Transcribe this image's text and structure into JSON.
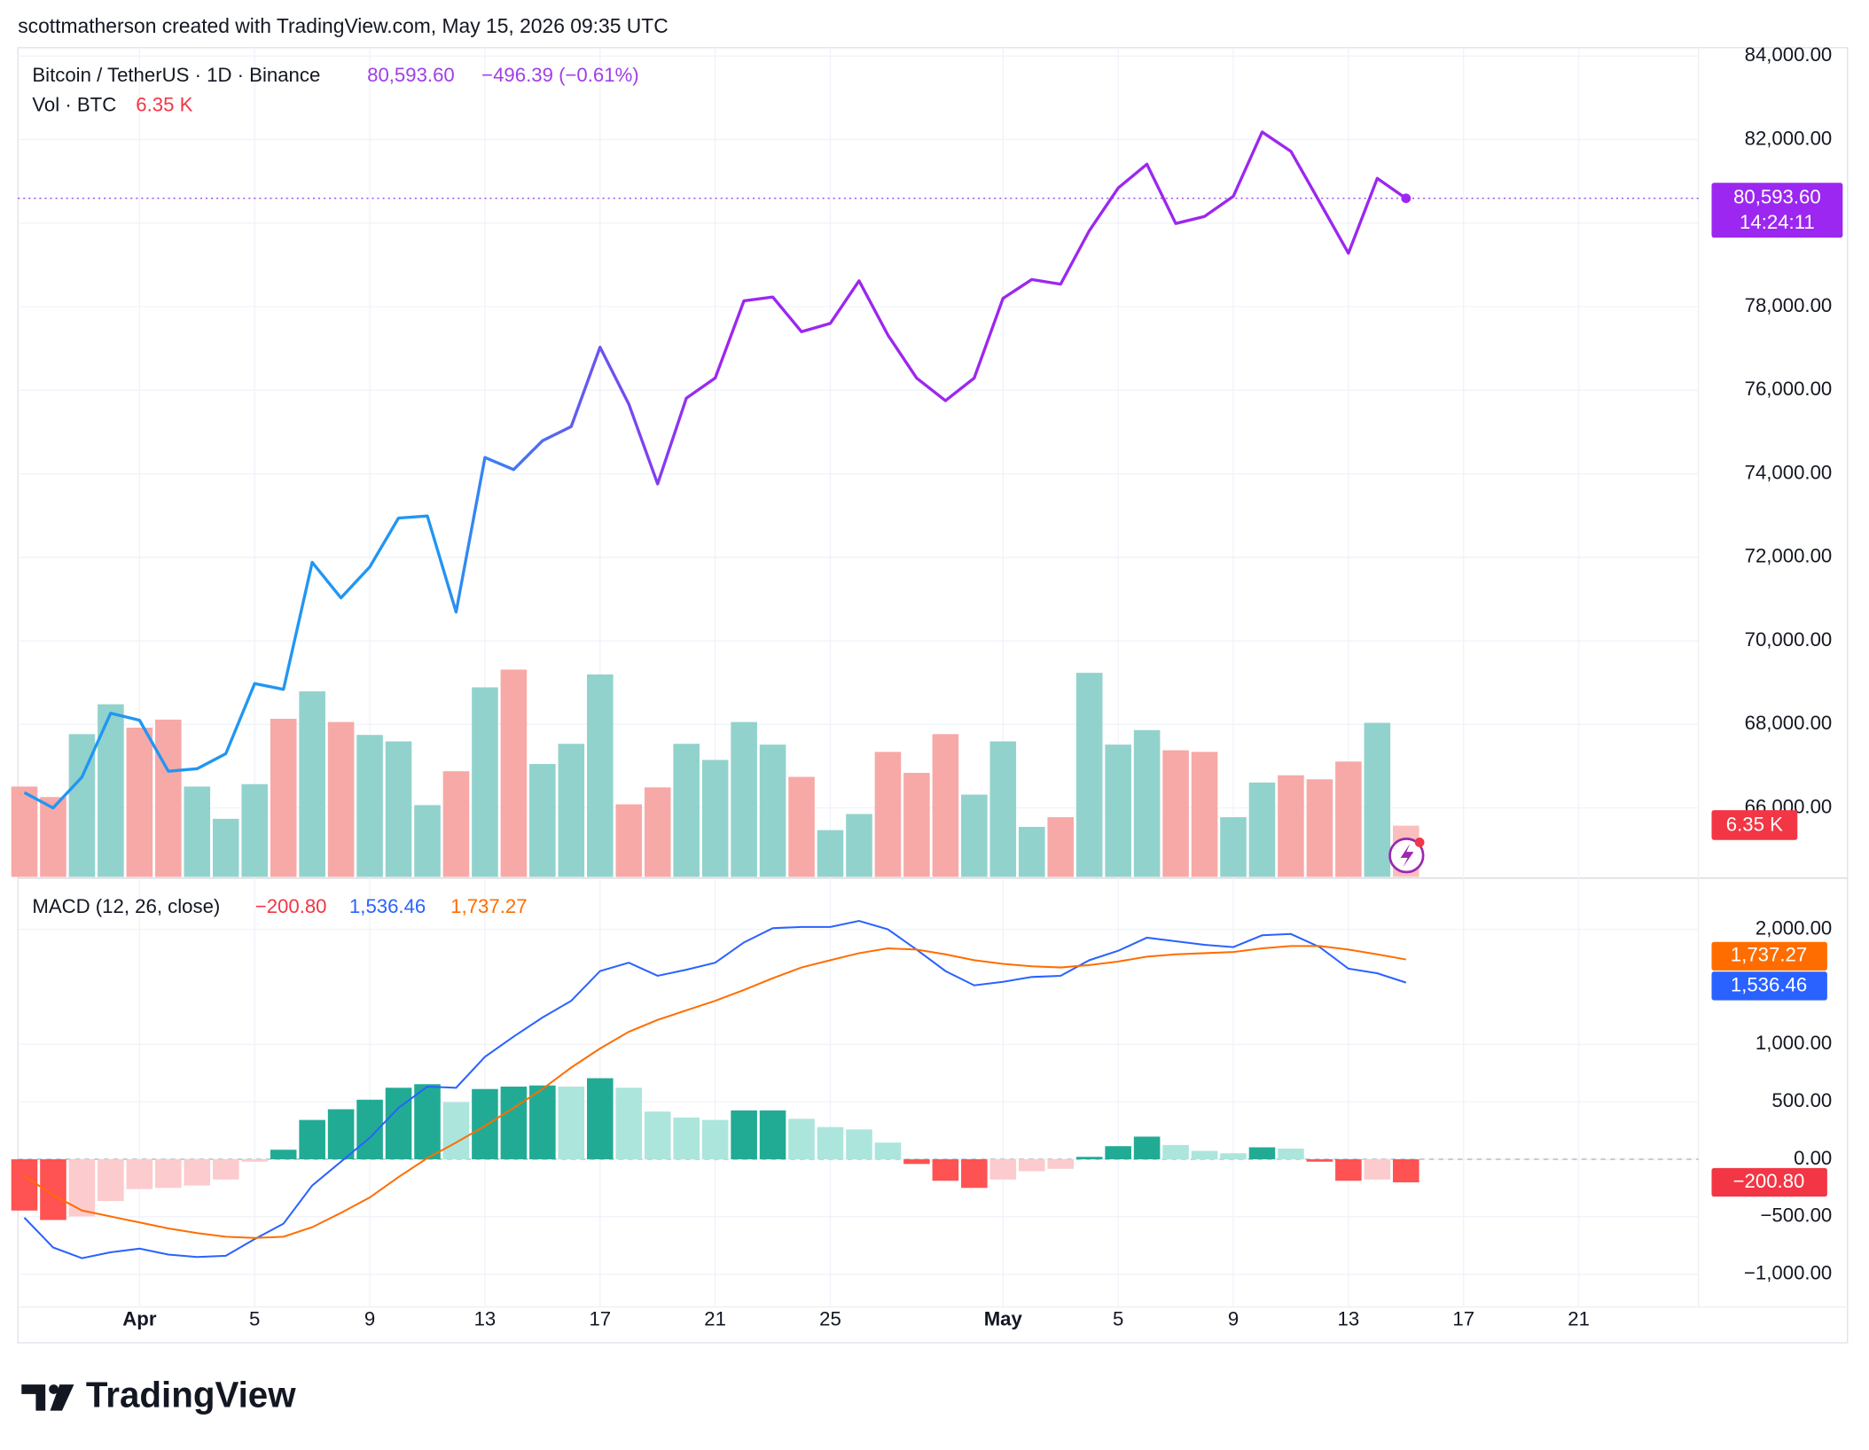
{
  "header": "scottmatherson created with TradingView.com, May 15, 2026 09:35 UTC",
  "footer": "TradingView",
  "chart_data": [
    {
      "type": "line",
      "title": "Bitcoin / TetherUS · 1D · Binance",
      "change": "−496.39 (−0.61%)",
      "countdown": "14:24:11",
      "ylim": [
        64350,
        84200
      ],
      "yticks": [
        {
          "value": 66000,
          "label": "66,000.00"
        },
        {
          "value": 68000,
          "label": "68,000.00"
        },
        {
          "value": 70000,
          "label": "70,000.00"
        },
        {
          "value": 72000,
          "label": "72,000.00"
        },
        {
          "value": 74000,
          "label": "74,000.00"
        },
        {
          "value": 76000,
          "label": "76,000.00"
        },
        {
          "value": 78000,
          "label": "78,000.00"
        },
        {
          "value": 80000,
          "label": "80,000.00"
        },
        {
          "value": 82000,
          "label": "82,000.00"
        },
        {
          "value": 84000,
          "label": "84,000.00"
        }
      ],
      "grid": true,
      "series": [
        {
          "name": "Bitcoin / TetherUS",
          "color": "#9c27f0",
          "color_start": "#2196f3",
          "values": [
            66370,
            66000,
            66740,
            68270,
            68100,
            66880,
            66940,
            67300,
            68980,
            68840,
            71880,
            71030,
            71770,
            72940,
            72990,
            70690,
            74390,
            74100,
            74790,
            75130,
            77030,
            75670,
            73760,
            75810,
            76290,
            78140,
            78230,
            77400,
            77600,
            78620,
            77320,
            76290,
            75750,
            76290,
            78200,
            78650,
            78540,
            79820,
            80840,
            81410,
            79990,
            80160,
            80640,
            82180,
            81720,
            80500,
            79280,
            81070,
            80593.6,
            null,
            null,
            null,
            null,
            null,
            null,
            null,
            null,
            null,
            null
          ],
          "value_labels": [
            null,
            null,
            null,
            null,
            null,
            null,
            null,
            null,
            null,
            null,
            null,
            null,
            null,
            null,
            null,
            null,
            null,
            null,
            null,
            null,
            null,
            null,
            null,
            null,
            null,
            null,
            null,
            null,
            null,
            null,
            null,
            null,
            null,
            null,
            null,
            null,
            null,
            null,
            null,
            null,
            null,
            null,
            null,
            null,
            null,
            null,
            null,
            null,
            "80,593.60",
            null,
            null,
            null,
            null,
            null,
            null,
            null,
            null,
            null,
            null
          ]
        }
      ],
      "volume": {
        "name": "Vol · BTC",
        "values": [
          11200,
          9900,
          17700,
          21400,
          18500,
          19500,
          11200,
          7200,
          11500,
          19600,
          23000,
          19200,
          17600,
          16800,
          8900,
          13100,
          23500,
          25700,
          14000,
          16500,
          25100,
          9000,
          11100,
          16500,
          14500,
          19200,
          16400,
          12400,
          5800,
          7800,
          15500,
          12900,
          17700,
          10200,
          16800,
          6200,
          7400,
          25300,
          16400,
          18200,
          15700,
          15500,
          7400,
          11700,
          12600,
          12100,
          14300,
          19100,
          6350,
          null,
          null,
          null,
          null,
          null,
          null,
          null,
          null,
          null,
          null
        ],
        "value_labels": [
          null,
          null,
          null,
          null,
          null,
          null,
          null,
          null,
          null,
          null,
          null,
          null,
          null,
          null,
          null,
          null,
          null,
          null,
          null,
          null,
          null,
          null,
          null,
          null,
          null,
          null,
          null,
          null,
          null,
          null,
          null,
          null,
          null,
          null,
          null,
          null,
          null,
          null,
          null,
          null,
          null,
          null,
          null,
          null,
          null,
          null,
          null,
          null,
          "6.35 K",
          null,
          null,
          null,
          null,
          null,
          null,
          null,
          null,
          null,
          null
        ],
        "colors": [
          "#f7a9a7",
          "#f7a9a7",
          "#92d2cc",
          "#92d2cc",
          "#f7a9a7",
          "#f7a9a7",
          "#92d2cc",
          "#92d2cc",
          "#92d2cc",
          "#f7a9a7",
          "#92d2cc",
          "#f7a9a7",
          "#92d2cc",
          "#92d2cc",
          "#92d2cc",
          "#f7a9a7",
          "#92d2cc",
          "#f7a9a7",
          "#92d2cc",
          "#92d2cc",
          "#92d2cc",
          "#f7a9a7",
          "#f7a9a7",
          "#92d2cc",
          "#92d2cc",
          "#92d2cc",
          "#92d2cc",
          "#f7a9a7",
          "#92d2cc",
          "#92d2cc",
          "#f7a9a7",
          "#f7a9a7",
          "#f7a9a7",
          "#92d2cc",
          "#92d2cc",
          "#92d2cc",
          "#f7a9a7",
          "#92d2cc",
          "#92d2cc",
          "#92d2cc",
          "#f7a9a7",
          "#f7a9a7",
          "#92d2cc",
          "#92d2cc",
          "#f7a9a7",
          "#f7a9a7",
          "#f7a9a7",
          "#92d2cc",
          "#f7a9a7",
          null,
          null,
          null,
          null,
          null,
          null,
          null,
          null,
          null,
          null
        ],
        "label_color": "#f23645"
      }
    },
    {
      "type": "macd",
      "title": "MACD (12, 26, close)",
      "categories": [
        null,
        null,
        null,
        null,
        "Apr",
        null,
        null,
        null,
        "5",
        null,
        null,
        null,
        "9",
        null,
        null,
        null,
        "13",
        null,
        null,
        null,
        "17",
        null,
        null,
        null,
        "21",
        null,
        null,
        null,
        "25",
        null,
        null,
        null,
        null,
        null,
        "May",
        null,
        null,
        null,
        "5",
        null,
        null,
        null,
        "9",
        null,
        null,
        null,
        "13",
        null,
        null,
        null,
        "17",
        null,
        null,
        null,
        "21",
        null,
        null,
        null,
        null
      ],
      "ylim": [
        -1285,
        2435
      ],
      "yticks": [
        {
          "value": -1000,
          "label": "−1,000.00"
        },
        {
          "value": -500,
          "label": "−500.00"
        },
        {
          "value": 0,
          "label": "0.00"
        },
        {
          "value": 500,
          "label": "500.00"
        },
        {
          "value": 1000,
          "label": "1,000.00"
        },
        {
          "value": 2000,
          "label": "2,000.00"
        }
      ],
      "grid": true,
      "series": [
        {
          "name": "Histogram",
          "color": "#f23645",
          "values": [
            -446,
            -528,
            -497,
            -363,
            -259,
            -249,
            -228,
            -176,
            -21,
            83,
            342,
            435,
            518,
            622,
            653,
            497,
            611,
            632,
            642,
            632,
            705,
            622,
            415,
            363,
            342,
            425,
            425,
            352,
            280,
            259,
            145,
            -41,
            -187,
            -249,
            -176,
            -104,
            -83,
            21,
            114,
            197,
            124,
            73,
            52,
            104,
            93,
            -21,
            -187,
            -176,
            -200.8,
            null,
            null,
            null,
            null,
            null,
            null,
            null,
            null,
            null,
            null
          ],
          "value_labels": [
            null,
            null,
            null,
            null,
            null,
            null,
            null,
            null,
            null,
            null,
            null,
            null,
            null,
            null,
            null,
            null,
            null,
            null,
            null,
            null,
            null,
            null,
            null,
            null,
            null,
            null,
            null,
            null,
            null,
            null,
            null,
            null,
            null,
            null,
            null,
            null,
            null,
            null,
            null,
            null,
            null,
            null,
            null,
            null,
            null,
            null,
            null,
            null,
            "−200.80",
            null,
            null,
            null,
            null,
            null,
            null,
            null,
            null,
            null,
            null
          ],
          "colors": [
            "#ff5252",
            "#ff5252",
            "#fccbcd",
            "#fccbcd",
            "#fccbcd",
            "#fccbcd",
            "#fccbcd",
            "#fccbcd",
            "#fccbcd",
            "#22ab94",
            "#22ab94",
            "#22ab94",
            "#22ab94",
            "#22ab94",
            "#22ab94",
            "#ace5dc",
            "#22ab94",
            "#22ab94",
            "#22ab94",
            "#ace5dc",
            "#22ab94",
            "#ace5dc",
            "#ace5dc",
            "#ace5dc",
            "#ace5dc",
            "#22ab94",
            "#22ab94",
            "#ace5dc",
            "#ace5dc",
            "#ace5dc",
            "#ace5dc",
            "#ff5252",
            "#ff5252",
            "#ff5252",
            "#fccbcd",
            "#fccbcd",
            "#fccbcd",
            "#22ab94",
            "#22ab94",
            "#22ab94",
            "#ace5dc",
            "#ace5dc",
            "#ace5dc",
            "#22ab94",
            "#ace5dc",
            "#ff5252",
            "#ff5252",
            "#fccbcd",
            "#ff5252",
            null,
            null,
            null,
            null,
            null,
            null,
            null,
            null,
            null,
            null
          ]
        },
        {
          "name": "MACD",
          "color": "#2962ff",
          "values": [
            -508,
            -767,
            -860,
            -808,
            -777,
            -829,
            -850,
            -839,
            -694,
            -560,
            -228,
            -21,
            187,
            446,
            632,
            622,
            891,
            1067,
            1233,
            1378,
            1637,
            1710,
            1596,
            1648,
            1710,
            1886,
            2010,
            2021,
            2021,
            2073,
            2000,
            1824,
            1637,
            1513,
            1544,
            1585,
            1596,
            1731,
            1813,
            1927,
            1896,
            1865,
            1845,
            1948,
            1959,
            1845,
            1658,
            1617,
            1536.46,
            null,
            null,
            null,
            null,
            null,
            null,
            null,
            null,
            null,
            null
          ],
          "value_labels": [
            null,
            null,
            null,
            null,
            null,
            null,
            null,
            null,
            null,
            null,
            null,
            null,
            null,
            null,
            null,
            null,
            null,
            null,
            null,
            null,
            null,
            null,
            null,
            null,
            null,
            null,
            null,
            null,
            null,
            null,
            null,
            null,
            null,
            null,
            null,
            null,
            null,
            null,
            null,
            null,
            null,
            null,
            null,
            null,
            null,
            null,
            null,
            null,
            "1,536.46",
            null,
            null,
            null,
            null,
            null,
            null,
            null,
            null,
            null,
            null
          ]
        },
        {
          "name": "Signal",
          "color": "#ff6d00",
          "values": [
            -145,
            -311,
            -446,
            -497,
            -549,
            -601,
            -642,
            -674,
            -684,
            -674,
            -591,
            -466,
            -332,
            -155,
            10,
            145,
            290,
            446,
            611,
            798,
            964,
            1109,
            1212,
            1295,
            1378,
            1472,
            1575,
            1668,
            1731,
            1793,
            1834,
            1824,
            1782,
            1731,
            1699,
            1679,
            1668,
            1689,
            1720,
            1762,
            1782,
            1793,
            1803,
            1834,
            1855,
            1855,
            1824,
            1782,
            1737.27,
            null,
            null,
            null,
            null,
            null,
            null,
            null,
            null,
            null,
            null
          ],
          "value_labels": [
            null,
            null,
            null,
            null,
            null,
            null,
            null,
            null,
            null,
            null,
            null,
            null,
            null,
            null,
            null,
            null,
            null,
            null,
            null,
            null,
            null,
            null,
            null,
            null,
            null,
            null,
            null,
            null,
            null,
            null,
            null,
            null,
            null,
            null,
            null,
            null,
            null,
            null,
            null,
            null,
            null,
            null,
            null,
            null,
            null,
            null,
            null,
            null,
            "1,737.27",
            null,
            null,
            null,
            null,
            null,
            null,
            null,
            null,
            null,
            null
          ]
        }
      ]
    }
  ]
}
